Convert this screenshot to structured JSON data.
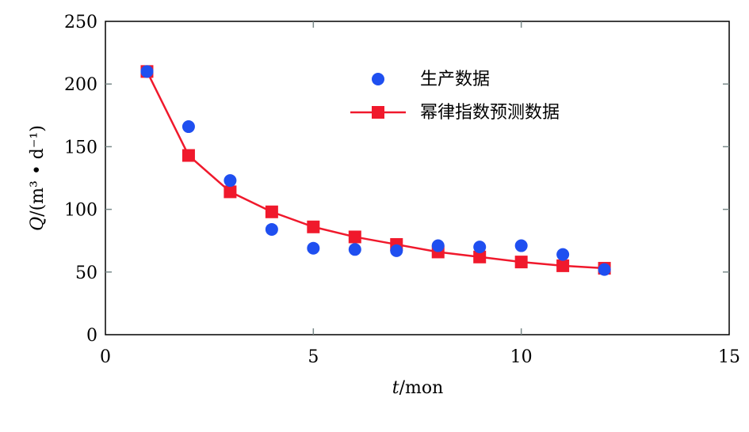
{
  "chart_data": {
    "type": "scatter",
    "xlabel_italic": "t",
    "xlabel_unit": "/mon",
    "ylabel_italic": "Q",
    "ylabel_unit": "/(m³ • d⁻¹)",
    "xlim": [
      0,
      15
    ],
    "ylim": [
      0,
      250
    ],
    "xticks": [
      0,
      5,
      10,
      15
    ],
    "yticks": [
      0,
      50,
      100,
      150,
      200,
      250
    ],
    "grid": false,
    "legend_position": "top-center",
    "series": [
      {
        "name": "生产数据",
        "kind": "scatter",
        "marker": "circle",
        "color": "#1f4ff0",
        "x": [
          1,
          2,
          3,
          4,
          5,
          6,
          7,
          8,
          9,
          10,
          11,
          12
        ],
        "y": [
          210,
          166,
          123,
          84,
          69,
          68,
          67,
          71,
          70,
          71,
          64,
          52
        ]
      },
      {
        "name": "幂律指数预测数据",
        "kind": "line",
        "marker": "square",
        "color": "#f0192c",
        "x": [
          1,
          2,
          3,
          4,
          5,
          6,
          7,
          8,
          9,
          10,
          11,
          12
        ],
        "y": [
          210,
          143,
          114,
          98,
          86,
          78,
          72,
          66,
          62,
          58,
          55,
          53
        ]
      }
    ]
  }
}
